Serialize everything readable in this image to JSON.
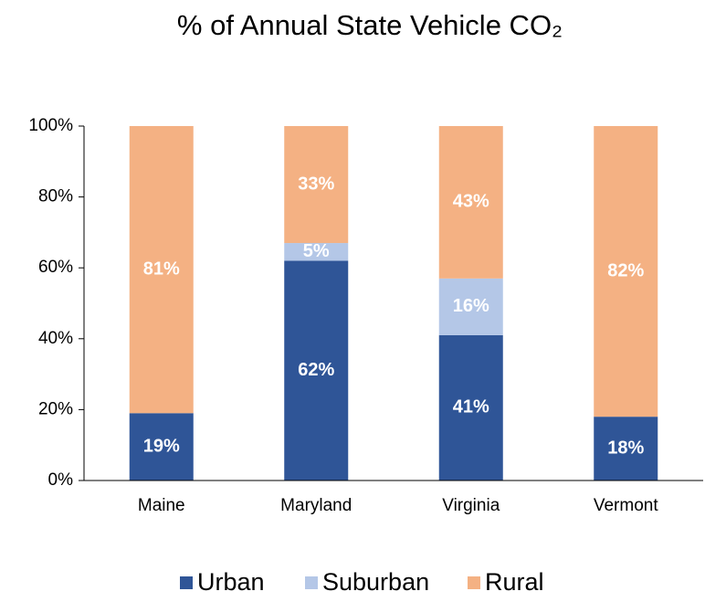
{
  "chart_data": {
    "type": "stacked_bar",
    "title": "% of Annual State Vehicle CO₂",
    "categories": [
      "Maine",
      "Maryland",
      "Virginia",
      "Vermont"
    ],
    "series": [
      {
        "name": "Urban",
        "color": "#2f5597",
        "values": [
          19,
          62,
          41,
          18
        ],
        "value_labels": [
          "19%",
          "62%",
          "41%",
          "18%"
        ]
      },
      {
        "name": "Suburban",
        "color": "#b4c7e7",
        "values": [
          0,
          5,
          16,
          0
        ],
        "value_labels": [
          null,
          "5%",
          "16%",
          null
        ]
      },
      {
        "name": "Rural",
        "color": "#f4b183",
        "values": [
          81,
          33,
          43,
          82
        ],
        "value_labels": [
          "81%",
          "33%",
          "43%",
          "82%"
        ]
      }
    ],
    "ylim": [
      0,
      100
    ],
    "yticks": [
      {
        "value": 0,
        "label": "0%"
      },
      {
        "value": 20,
        "label": "20%"
      },
      {
        "value": 40,
        "label": "40%"
      },
      {
        "value": 60,
        "label": "60%"
      },
      {
        "value": 80,
        "label": "80%"
      },
      {
        "value": 100,
        "label": "100%"
      }
    ],
    "legend": "bottom"
  }
}
